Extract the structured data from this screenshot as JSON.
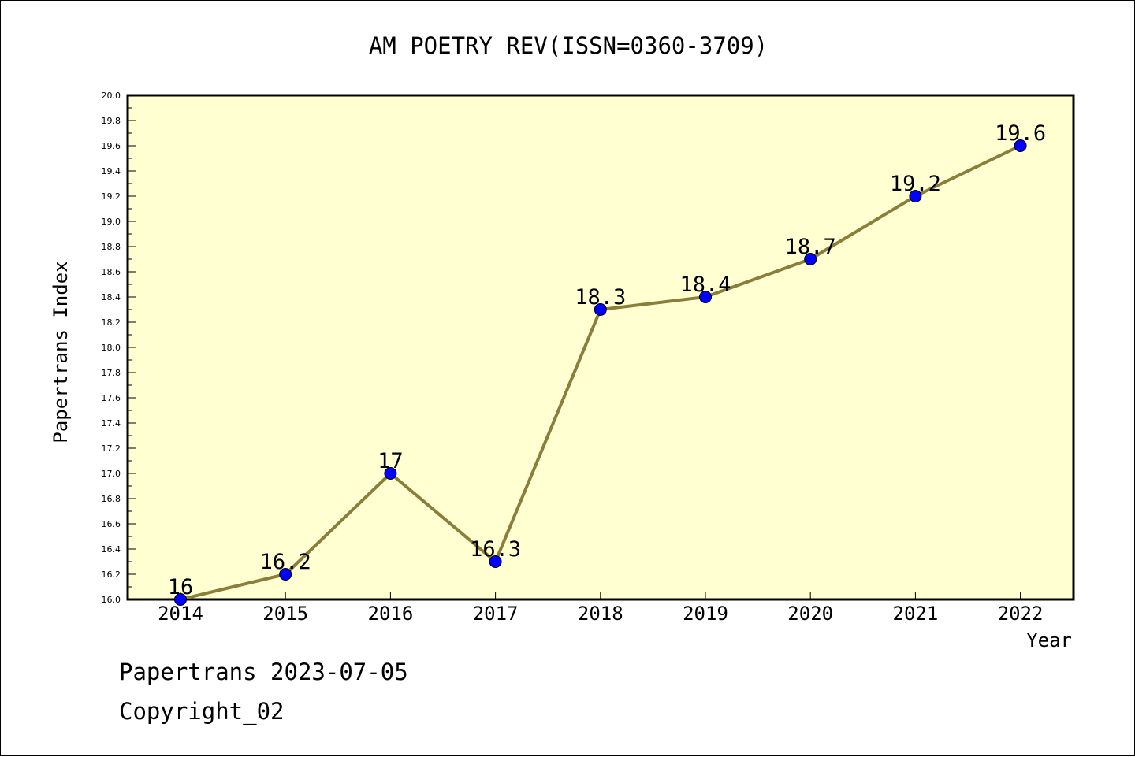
{
  "chart_data": {
    "type": "line",
    "title": "AM POETRY REV(ISSN=0360-3709)",
    "xlabel": "Year",
    "ylabel": "Papertrans Index",
    "x": [
      "2014",
      "2015",
      "2016",
      "2017",
      "2018",
      "2019",
      "2020",
      "2021",
      "2022"
    ],
    "series": [
      {
        "values": [
          16,
          16.2,
          17,
          16.3,
          18.3,
          18.4,
          18.7,
          19.2,
          19.6
        ],
        "labels": [
          "16",
          "16.2",
          "17",
          "16.3",
          "18.3",
          "18.4",
          "18.7",
          "19.2",
          "19.6"
        ]
      }
    ],
    "ylim": [
      16.0,
      20.0
    ],
    "y_ticks": [
      "16.0",
      "16.2",
      "16.4",
      "16.6",
      "16.8",
      "17.0",
      "17.2",
      "17.4",
      "17.6",
      "17.8",
      "18.0",
      "18.2",
      "18.4",
      "18.6",
      "18.8",
      "19.0",
      "19.2",
      "19.4",
      "19.6",
      "19.8",
      "20.0"
    ],
    "grid": false,
    "colors": {
      "plot_background": "#ffffd2",
      "line": "#8b7d3a",
      "marker": "#0000ff"
    }
  },
  "footer": {
    "line1": "Papertrans 2023-07-05",
    "line2": "Copyright_02"
  }
}
